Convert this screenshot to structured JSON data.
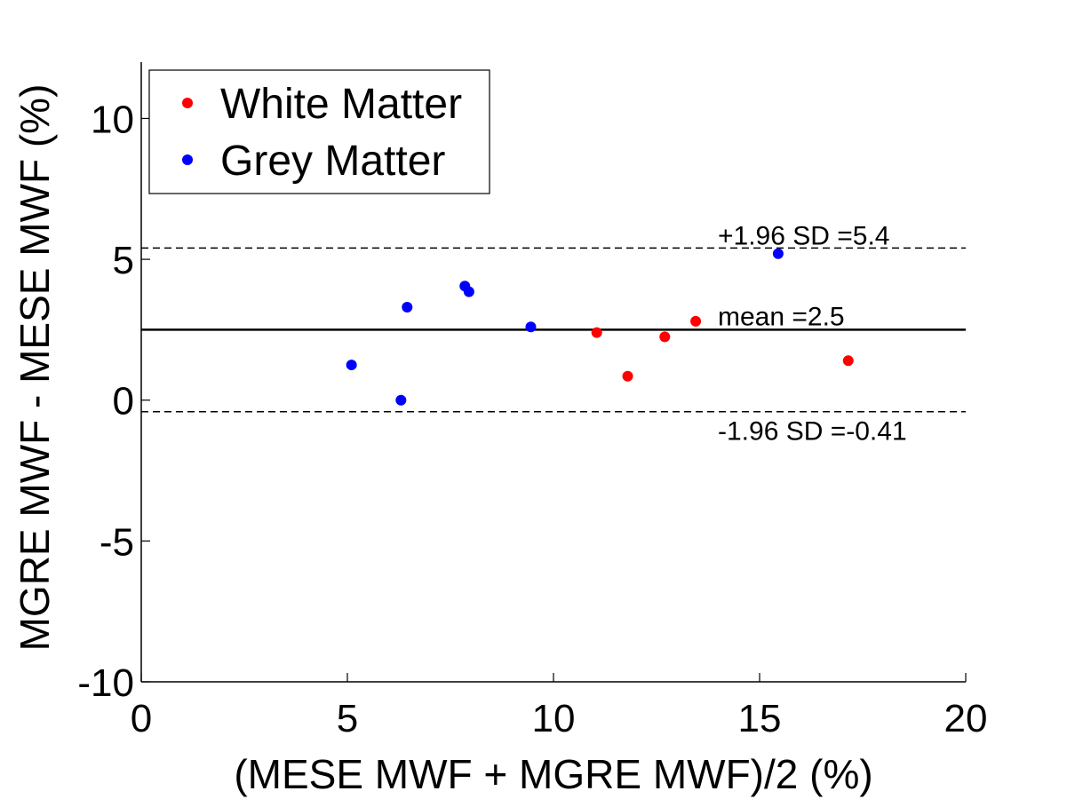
{
  "chart_data": {
    "type": "scatter",
    "xlabel": "(MESE MWF + MGRE MWF)/2 (%)",
    "ylabel": "MGRE MWF - MESE MWF (%)",
    "xlim": [
      0,
      20
    ],
    "ylim": [
      -10,
      12
    ],
    "x_ticks": [
      "0",
      "5",
      "10",
      "15",
      "20"
    ],
    "y_ticks": [
      "-10",
      "-5",
      "0",
      "5",
      "10"
    ],
    "grid": false,
    "legend_position": "top-left",
    "series": [
      {
        "name": "White Matter",
        "color": "#ff0000",
        "points": [
          {
            "x": 11.05,
            "y": 2.4
          },
          {
            "x": 11.8,
            "y": 0.85
          },
          {
            "x": 12.7,
            "y": 2.25
          },
          {
            "x": 13.45,
            "y": 2.8
          },
          {
            "x": 17.15,
            "y": 1.4
          }
        ]
      },
      {
        "name": "Grey Matter",
        "color": "#0000ff",
        "points": [
          {
            "x": 5.1,
            "y": 1.25
          },
          {
            "x": 6.3,
            "y": 0.0
          },
          {
            "x": 6.45,
            "y": 3.3
          },
          {
            "x": 7.85,
            "y": 4.05
          },
          {
            "x": 7.95,
            "y": 3.85
          },
          {
            "x": 9.45,
            "y": 2.6
          },
          {
            "x": 15.45,
            "y": 5.2
          }
        ]
      }
    ],
    "reference_lines": [
      {
        "label": "+1.96 SD =5.4",
        "y": 5.4,
        "style": "dashed"
      },
      {
        "label": "mean =2.5",
        "y": 2.5,
        "style": "solid"
      },
      {
        "label": "-1.96 SD =-0.41",
        "y": -0.41,
        "style": "dashed"
      }
    ]
  }
}
